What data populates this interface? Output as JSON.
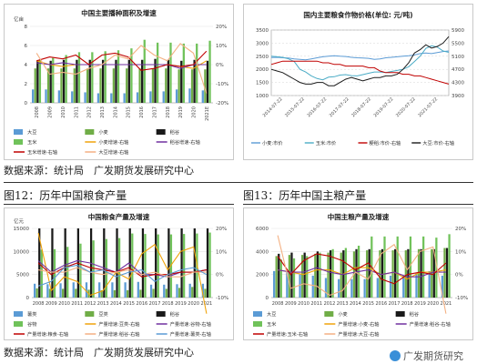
{
  "figure12_caption": "图12：历年中国粮食产量",
  "figure13_caption": "图13：历年中国主粮产量",
  "source_top": "数据来源：统计局　广发期货发展研究中心",
  "source_bottom": "数据来源：统计局　广发期货发展研究中心",
  "watermark": "广发期货研究",
  "chart_data": [
    {
      "id": "area",
      "type": "bar",
      "title": "中国主要播种面积及增速",
      "ylabel_left": "亿亩",
      "categories": [
        "2008",
        "2009",
        "2010",
        "2011",
        "2012",
        "2013",
        "2014",
        "2015",
        "2016",
        "2017",
        "2018",
        "2019",
        "2020",
        "2021E"
      ],
      "ylim": [
        0,
        8
      ],
      "yticks": [
        0,
        2,
        4,
        6,
        8
      ],
      "ylim_right": [
        -20,
        20
      ],
      "yticks_right": [
        -20,
        -10,
        0,
        10,
        20
      ],
      "right_suffix": "%",
      "bar_series": [
        {
          "name": "大豆",
          "color": "#5b9bd5",
          "values": [
            1.4,
            1.4,
            1.3,
            1.2,
            1.1,
            1.0,
            1.0,
            1.0,
            1.1,
            1.2,
            1.2,
            1.4,
            1.5,
            1.3
          ]
        },
        {
          "name": "小麦",
          "color": "#70ad47",
          "values": [
            3.6,
            3.6,
            3.6,
            3.6,
            3.6,
            3.6,
            3.6,
            3.6,
            3.6,
            3.6,
            3.6,
            3.5,
            3.5,
            3.5
          ]
        },
        {
          "name": "稻谷",
          "color": "#1a1a1a",
          "values": [
            4.4,
            4.4,
            4.5,
            4.5,
            4.5,
            4.5,
            4.5,
            4.5,
            4.5,
            4.6,
            4.5,
            4.4,
            4.5,
            4.4
          ]
        },
        {
          "name": "玉米",
          "color": "#70c25a",
          "values": [
            4.5,
            4.7,
            5.0,
            5.3,
            5.3,
            5.4,
            5.5,
            5.7,
            6.6,
            6.3,
            6.3,
            6.2,
            6.2,
            6.5
          ]
        }
      ],
      "line_series": [
        {
          "name": "小麦增速-右轴",
          "color": "#f0a30a",
          "values": [
            2,
            0,
            -1,
            0,
            0,
            0,
            0,
            0,
            0,
            0,
            0,
            -1,
            -2,
            2
          ]
        },
        {
          "name": "稻谷增速-右轴",
          "color": "#7030a0",
          "values": [
            1,
            0,
            1,
            0,
            0,
            0,
            0,
            0,
            0,
            0,
            0,
            -2,
            0,
            0
          ]
        },
        {
          "name": "玉米增速-右轴",
          "color": "#c00000",
          "values": [
            2,
            4,
            3,
            5,
            0,
            5,
            6,
            4,
            -3,
            -2,
            0,
            -1,
            0,
            7
          ]
        },
        {
          "name": "大豆增速-右轴",
          "color": "#f4b183",
          "values": [
            6,
            -5,
            -4,
            -5,
            -2,
            0,
            5,
            3,
            10,
            5,
            2,
            11,
            6,
            -15
          ]
        }
      ],
      "legend": [
        "大豆",
        "小麦",
        "稻谷",
        "玉米",
        "小麦增速-右轴",
        "稻谷增速-右轴",
        "玉米增速-右轴",
        "大豆增速-右轴"
      ]
    },
    {
      "id": "price",
      "type": "line",
      "title": "国内主要粮食作物价格(单位: 元/吨)",
      "x_ticks": [
        "2014-07-22",
        "2015-07-22",
        "2016-07-22",
        "2017-07-22",
        "2018-07-22",
        "2019-07-22",
        "2020-07-22",
        "2021-07-22"
      ],
      "ylim": [
        1000,
        3500
      ],
      "yticks": [
        1000,
        1500,
        2000,
        2500,
        3000,
        3500
      ],
      "ylim_right": [
        3900,
        5900
      ],
      "yticks_right": [
        3900,
        4300,
        4700,
        5100,
        5500,
        5900
      ],
      "series": [
        {
          "name": "小麦:市价",
          "axis": "left",
          "color": "#5b9bd5",
          "values": [
            2450,
            2460,
            2440,
            2430,
            2400,
            2380,
            2360,
            2400,
            2440,
            2480,
            2500,
            2520,
            2500,
            2490,
            2460,
            2440,
            2430,
            2420,
            2380,
            2400,
            2440,
            2460,
            2480,
            2500,
            2520,
            2550,
            2600,
            2620,
            2600,
            2640,
            2680,
            2700
          ]
        },
        {
          "name": "玉米:市价",
          "axis": "left",
          "color": "#4bacc6",
          "values": [
            2500,
            2480,
            2460,
            2400,
            2300,
            2000,
            1900,
            1750,
            1650,
            1600,
            1700,
            1720,
            1780,
            1800,
            1760,
            1750,
            1800,
            1850,
            1900,
            1900,
            1880,
            1920,
            1960,
            2000,
            2100,
            2300,
            2500,
            2800,
            2900,
            2850,
            2700,
            2650
          ]
        },
        {
          "name": "粳稻:市价-右轴",
          "axis": "right",
          "color": "#c00000",
          "values": [
            4850,
            4900,
            4950,
            4950,
            4950,
            4950,
            4950,
            4950,
            4950,
            4900,
            4900,
            4850,
            4850,
            4800,
            4800,
            4800,
            4800,
            4750,
            4750,
            4650,
            4600,
            4600,
            4600,
            4550,
            4550,
            4500,
            4500,
            4450,
            4400,
            4350,
            4300,
            4250
          ]
        },
        {
          "name": "大豆:市价-右轴",
          "axis": "right",
          "color": "#1a1a1a",
          "values": [
            4700,
            4650,
            4600,
            4500,
            4400,
            4300,
            4250,
            4250,
            4300,
            4300,
            4200,
            4200,
            4300,
            4400,
            4450,
            4400,
            4350,
            4400,
            4450,
            4450,
            4500,
            4500,
            4550,
            4700,
            4900,
            5200,
            5300,
            5450,
            5350,
            5400,
            5500,
            5700
          ]
        }
      ],
      "legend": [
        "小麦:市价",
        "玉米:市价",
        "粳稻:市价-右轴",
        "大豆:市价-右轴"
      ]
    },
    {
      "id": "grain",
      "type": "bar",
      "title": "中国粮食产量及增速",
      "ylabel_left": "亿元",
      "categories": [
        "2008",
        "2009",
        "2010",
        "2011",
        "2012",
        "2013",
        "2014",
        "2015",
        "2016",
        "2017",
        "2018",
        "2019",
        "2020",
        "2021"
      ],
      "ylim": [
        0,
        15000
      ],
      "yticks": [
        0,
        5000,
        10000,
        15000
      ],
      "ylim_right": [
        -10,
        20
      ],
      "yticks_right": [
        -10,
        0,
        10,
        20
      ],
      "right_suffix": "%",
      "bar_series": [
        {
          "name": "薯类",
          "color": "#5b9bd5",
          "values": [
            3000,
            2900,
            3100,
            3300,
            3300,
            3300,
            3300,
            3300,
            3400,
            2800,
            2800,
            2900,
            3000,
            3000
          ]
        },
        {
          "name": "豆类",
          "color": "#70ad47",
          "values": [
            2000,
            1900,
            1900,
            1900,
            1700,
            1600,
            1600,
            1600,
            1700,
            1900,
            1900,
            2100,
            2300,
            1900
          ]
        },
        {
          "name": "稻谷",
          "color": "#1a1a1a",
          "values": [
            19200,
            19500,
            19600,
            20100,
            20400,
            20400,
            20600,
            21200,
            21100,
            21300,
            21200,
            20900,
            21200,
            21300
          ]
        },
        {
          "name": "谷物",
          "color": "#70c25a",
          "values": [
            10400,
            10500,
            11000,
            11700,
            12400,
            12700,
            12900,
            13900,
            13800,
            13700,
            13700,
            13800,
            13900,
            14100
          ]
        }
      ],
      "line_series": [
        {
          "name": "产量增速:豆类-右轴",
          "color": "#f0a30a",
          "values": [
            18,
            -7,
            -1,
            -3,
            -9,
            -7,
            1,
            -2,
            9,
            13,
            2,
            10,
            12,
            -17
          ]
        },
        {
          "name": "产量增速:谷物-右轴",
          "color": "#7030a0",
          "values": [
            6,
            1,
            4,
            6,
            5,
            3,
            1,
            5,
            0,
            0,
            -1,
            1,
            1,
            2
          ]
        },
        {
          "name": "产量增速:粮食-右轴",
          "color": "#c00000",
          "values": [
            5,
            0,
            3,
            5,
            3,
            2,
            1,
            3,
            -1,
            0,
            0,
            1,
            1,
            2
          ]
        },
        {
          "name": "产量增速:稻谷-右轴",
          "color": "#f4b183",
          "values": [
            2,
            1,
            1,
            3,
            1,
            0,
            1,
            2,
            0,
            1,
            -1,
            -1,
            1,
            1
          ]
        },
        {
          "name": "产量增速:薯类-右轴",
          "color": "#5b9bd5",
          "values": [
            -5,
            -3,
            3,
            4,
            1,
            2,
            -1,
            1,
            2,
            -3,
            0,
            2,
            3,
            0
          ]
        }
      ],
      "legend": [
        "薯类",
        "豆类",
        "稻谷",
        "谷物",
        "产量增速:豆类-右轴",
        "产量增速:谷物-右轴",
        "产量增速:粮食-右轴",
        "产量增速:稻谷-右轴",
        "产量增速:薯类-右轴"
      ]
    },
    {
      "id": "staple",
      "type": "bar",
      "title": "中国主粮产量及增速",
      "categories": [
        "2008",
        "2009",
        "2010",
        "2011",
        "2012",
        "2013",
        "2014",
        "2015",
        "2016",
        "2017",
        "2018",
        "2019",
        "2020",
        "2021"
      ],
      "ylim": [
        0,
        6000
      ],
      "yticks": [
        0,
        2000,
        4000,
        6000
      ],
      "ylim_right": [
        -10,
        20
      ],
      "yticks_right": [
        -10,
        0,
        10,
        20
      ],
      "right_suffix": "%",
      "bar_series": [
        {
          "name": "大豆",
          "color": "#5b9bd5",
          "values": [
            2300,
            2200,
            2000,
            1900,
            1700,
            1600,
            1600,
            1600,
            1700,
            1900,
            1900,
            2100,
            2300,
            1900
          ]
        },
        {
          "name": "小麦",
          "color": "#70ad47",
          "values": [
            3600,
            3700,
            3700,
            3800,
            3900,
            3900,
            4000,
            4100,
            4100,
            4100,
            4100,
            4200,
            4200,
            4300
          ]
        },
        {
          "name": "稻谷",
          "color": "#1a1a1a",
          "values": [
            3800,
            3900,
            3900,
            4000,
            4100,
            4100,
            4200,
            4200,
            4200,
            4200,
            4200,
            4200,
            4200,
            4300
          ]
        },
        {
          "name": "玉米",
          "color": "#70c25a",
          "values": [
            3300,
            3400,
            3600,
            3900,
            4200,
            4300,
            4500,
            5300,
            5300,
            5300,
            5300,
            5300,
            5200,
            5500
          ]
        }
      ],
      "line_series": [
        {
          "name": "产量增速:小麦-右轴",
          "color": "#f0a30a",
          "values": [
            2,
            1,
            0,
            2,
            2,
            0,
            3,
            3,
            0,
            1,
            -2,
            1,
            1,
            2
          ]
        },
        {
          "name": "产量增速:稻谷-右轴",
          "color": "#7030a0",
          "values": [
            2,
            1,
            1,
            3,
            1,
            0,
            1,
            2,
            0,
            1,
            -1,
            -1,
            1,
            1
          ]
        },
        {
          "name": "产量增速:玉米-右轴",
          "color": "#c00000",
          "values": [
            8,
            0,
            6,
            9,
            8,
            6,
            2,
            5,
            -2,
            -4,
            0,
            1,
            0,
            5
          ]
        },
        {
          "name": "产量增速:大豆-右轴",
          "color": "#f4b183",
          "values": [
            17,
            -6,
            -4,
            -5,
            -9,
            -7,
            1,
            -2,
            9,
            13,
            2,
            10,
            12,
            -17
          ]
        }
      ],
      "legend": [
        "大豆",
        "小麦",
        "稻谷",
        "玉米",
        "产量增速:小麦-右轴",
        "产量增速:稻谷-右轴",
        "产量增速:玉米-右轴",
        "产量增速:大豆-右轴"
      ]
    }
  ]
}
